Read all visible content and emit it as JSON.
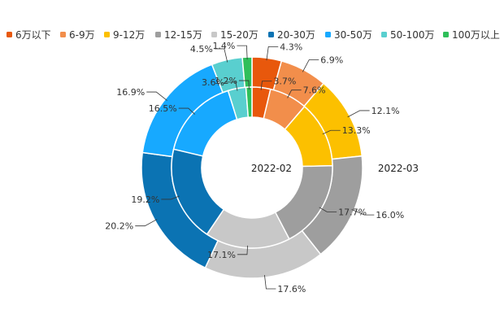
{
  "chart_data": {
    "type": "pie",
    "subtype": "nested-donut",
    "categories": [
      "6万以下",
      "6-9万",
      "9-12万",
      "12-15万",
      "15-20万",
      "20-30万",
      "30-50万",
      "50-100万",
      "100万以上"
    ],
    "colors": [
      "#e8580c",
      "#f28e4b",
      "#fcc000",
      "#9e9e9e",
      "#c8c8c8",
      "#0b73b3",
      "#17a9ff",
      "#59cfcf",
      "#2fbf5a"
    ],
    "series": [
      {
        "name": "2022-02",
        "ring": "inner",
        "values": [
          3.7,
          7.6,
          13.3,
          17.7,
          17.1,
          19.2,
          16.5,
          3.6,
          1.2
        ],
        "labels": [
          "3.7%",
          "7.6%",
          "13.3%",
          "17.7%",
          "17.1%",
          "19.2%",
          "16.5%",
          "3.6%",
          "1.2%"
        ]
      },
      {
        "name": "2022-03",
        "ring": "outer",
        "values": [
          4.3,
          6.9,
          12.1,
          16.0,
          17.6,
          20.2,
          16.9,
          4.5,
          1.4
        ],
        "labels": [
          "4.3%",
          "6.9%",
          "12.1%",
          "16.0%",
          "17.6%",
          "20.2%",
          "16.9%",
          "4.5%",
          "1.4%"
        ]
      }
    ],
    "legend_position": "top"
  }
}
